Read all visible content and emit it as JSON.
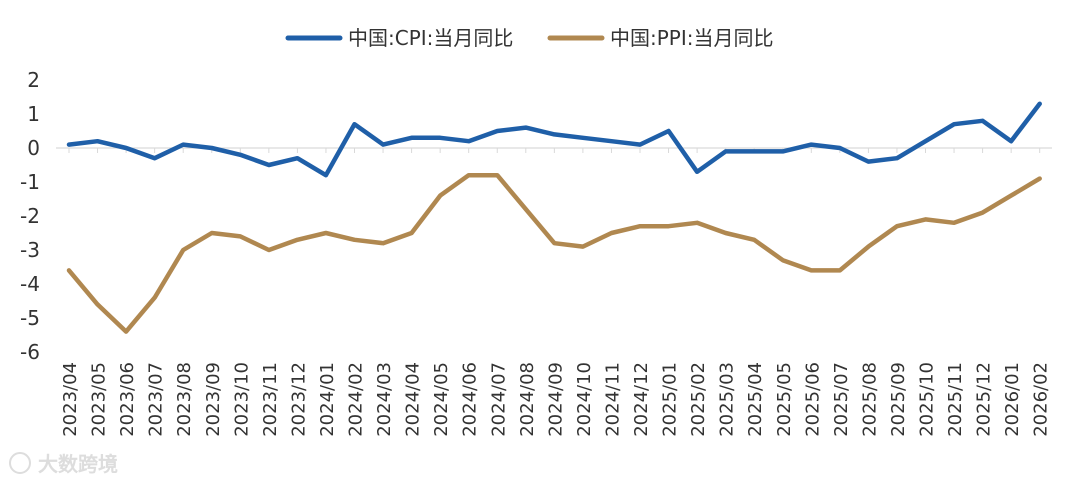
{
  "chart_data": {
    "type": "line",
    "categories": [
      "2023/04",
      "2023/05",
      "2023/06",
      "2023/07",
      "2023/08",
      "2023/09",
      "2023/10",
      "2023/11",
      "2023/12",
      "2024/01",
      "2024/02",
      "2024/03",
      "2024/04",
      "2024/05",
      "2024/06",
      "2024/07",
      "2024/08",
      "2024/09",
      "2024/10",
      "2024/11",
      "2024/12",
      "2025/01",
      "2025/02",
      "2025/03",
      "2025/04",
      "2025/05",
      "2025/06",
      "2025/07",
      "2025/08",
      "2025/09",
      "2025/10",
      "2025/11",
      "2025/12",
      "2026/01",
      "2026/02"
    ],
    "series": [
      {
        "name": "中国:CPI:当月同比",
        "color": "#1f5fa8",
        "values": [
          0.1,
          0.2,
          0.0,
          -0.3,
          0.1,
          0.0,
          -0.2,
          -0.5,
          -0.3,
          -0.8,
          0.7,
          0.1,
          0.3,
          0.3,
          0.2,
          0.5,
          0.6,
          0.4,
          0.3,
          0.2,
          0.1,
          0.5,
          -0.7,
          -0.1,
          -0.1,
          -0.1,
          0.1,
          0.0,
          -0.4,
          -0.3,
          0.2,
          0.7,
          0.8,
          0.2,
          1.3
        ]
      },
      {
        "name": "中国:PPI:当月同比",
        "color": "#b08850",
        "values": [
          -3.6,
          -4.6,
          -5.4,
          -4.4,
          -3.0,
          -2.5,
          -2.6,
          -3.0,
          -2.7,
          -2.5,
          -2.7,
          -2.8,
          -2.5,
          -1.4,
          -0.8,
          -0.8,
          -1.8,
          -2.8,
          -2.9,
          -2.5,
          -2.3,
          -2.3,
          -2.2,
          -2.5,
          -2.7,
          -3.3,
          -3.6,
          -3.6,
          -2.9,
          -2.3,
          -2.1,
          -2.2,
          -1.9,
          -1.4,
          -0.9
        ]
      }
    ],
    "y_ticks": [
      "2",
      "1",
      "0",
      "-1",
      "-2",
      "-3",
      "-4",
      "-5",
      "-6"
    ],
    "ylim": [
      -6,
      2
    ],
    "grid": false,
    "legend_position": "top-center"
  },
  "watermark": "大数跨境"
}
